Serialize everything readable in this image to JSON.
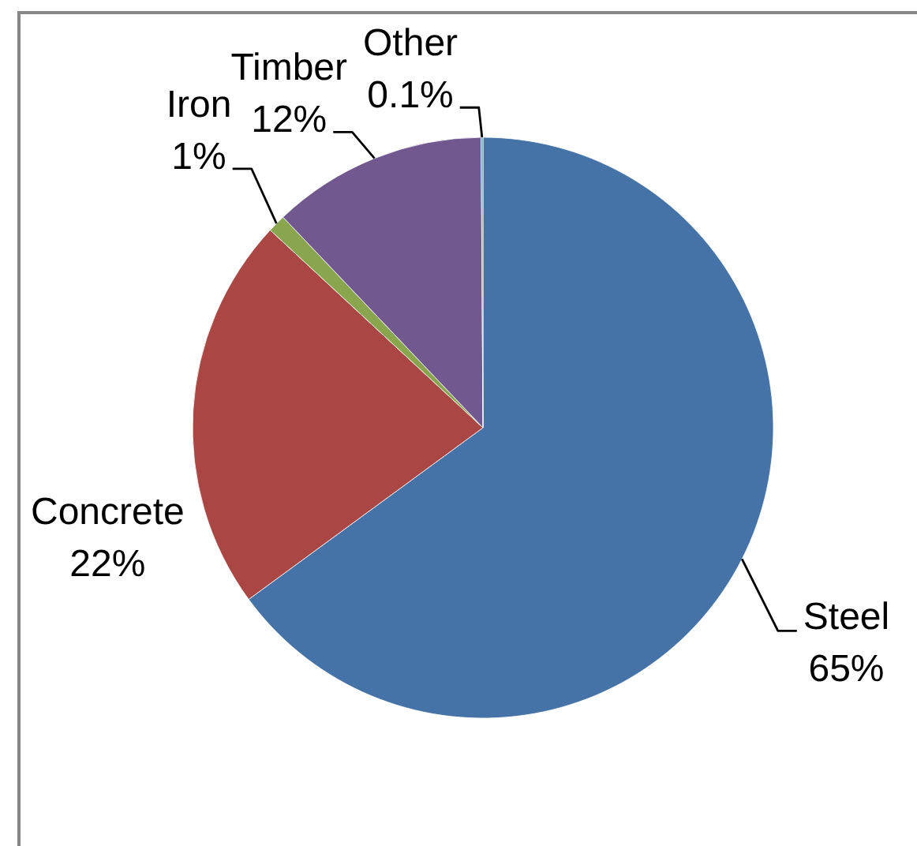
{
  "chart_data": {
    "type": "pie",
    "categories": [
      "Steel",
      "Concrete",
      "Iron",
      "Timber",
      "Other"
    ],
    "values": [
      65,
      22,
      1,
      12,
      0.1
    ],
    "value_labels": [
      "65%",
      "22%",
      "1%",
      "12%",
      "0.1%"
    ],
    "colors": [
      "#4572a7",
      "#aa4643",
      "#89a54e",
      "#71588f",
      "#4198af"
    ]
  }
}
